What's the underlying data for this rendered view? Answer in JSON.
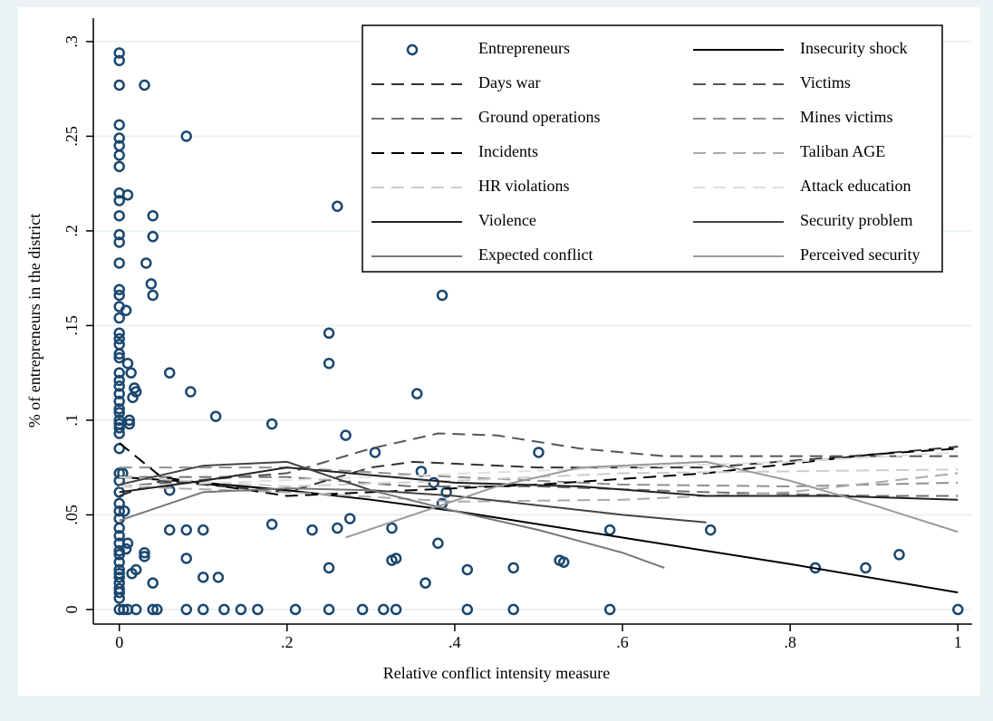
{
  "chart_data": {
    "type": "scatter",
    "xlabel": "Relative conflict intensity measure",
    "ylabel": "% of entrepreneurs in the district",
    "xlim": [
      -0.031,
      1.017
    ],
    "ylim": [
      -0.0077,
      0.3124
    ],
    "xticks": [
      0,
      {
        "value": 0.2,
        "label": ".2"
      },
      {
        "value": 0.4,
        "label": ".4"
      },
      {
        "value": 0.6,
        "label": ".6"
      },
      {
        "value": 0.8,
        "label": ".8"
      },
      1
    ],
    "yticks": [
      0,
      {
        "value": 0.05,
        "label": ".05"
      },
      {
        "value": 0.1,
        "label": ".1"
      },
      {
        "value": 0.15,
        "label": ".15"
      },
      {
        "value": 0.2,
        "label": ".2"
      },
      {
        "value": 0.25,
        "label": ".25"
      },
      {
        "value": 0.3,
        "label": ".3"
      }
    ],
    "grid": true,
    "legend": "top-right",
    "series": [
      {
        "name": "Entrepreneurs",
        "color": "#1a476f",
        "marker": "circle",
        "x": [
          0,
          0,
          0,
          0,
          0,
          0,
          0,
          0,
          0,
          0,
          0,
          0,
          0,
          0,
          0,
          0,
          0,
          0,
          0,
          0,
          0,
          0,
          0,
          0,
          0,
          0,
          0,
          0,
          0,
          0,
          0,
          0,
          0,
          0,
          0,
          0,
          0,
          0,
          0,
          0,
          0,
          0,
          0,
          0,
          0,
          0,
          0,
          0,
          0,
          0,
          0,
          0,
          0,
          0,
          0,
          0.004,
          0.006,
          0.008,
          0.01,
          0.01,
          0.012,
          0.012,
          0.014,
          0.016,
          0.018,
          0.02,
          0.01,
          0.008,
          0.015,
          0.02,
          0.02,
          0.01,
          0.005,
          0.03,
          0.032,
          0.038,
          0.04,
          0.04,
          0.04,
          0.03,
          0.03,
          0.04,
          0.04,
          0.045,
          0.06,
          0.06,
          0.06,
          0.08,
          0.085,
          0.08,
          0.08,
          0.08,
          0.1,
          0.1,
          0.1,
          0.115,
          0.118,
          0.125,
          0.145,
          0.165,
          0.182,
          0.182,
          0.21,
          0.23,
          0.25,
          0.25,
          0.25,
          0.25,
          0.26,
          0.26,
          0.27,
          0.275,
          0.29,
          0.305,
          0.315,
          0.325,
          0.325,
          0.33,
          0.33,
          0.355,
          0.36,
          0.365,
          0.375,
          0.38,
          0.385,
          0.385,
          0.39,
          0.415,
          0.415,
          0.47,
          0.47,
          0.5,
          0.525,
          0.53,
          0.585,
          0.585,
          0.705,
          0.83,
          0.89,
          0.93,
          1
        ],
        "values": [
          0.294,
          0.29,
          0.277,
          0.256,
          0.249,
          0.245,
          0.24,
          0.234,
          0.22,
          0.216,
          0.208,
          0.198,
          0.194,
          0.183,
          0.169,
          0.166,
          0.16,
          0.154,
          0.146,
          0.143,
          0.14,
          0.135,
          0.133,
          0.125,
          0.121,
          0.118,
          0.114,
          0.11,
          0.106,
          0.104,
          0.1,
          0.098,
          0.096,
          0.093,
          0.085,
          0.072,
          0.068,
          0.062,
          0.056,
          0.052,
          0.048,
          0.043,
          0.039,
          0.035,
          0.031,
          0.029,
          0.025,
          0.021,
          0.019,
          0.017,
          0.014,
          0.011,
          0.009,
          0.006,
          0,
          0.072,
          0.052,
          0.158,
          0.219,
          0.13,
          0.1,
          0.098,
          0.125,
          0.112,
          0.117,
          0.115,
          0.035,
          0.032,
          0.019,
          0.021,
          0,
          0,
          0,
          0.277,
          0.183,
          0.172,
          0.166,
          0.208,
          0.197,
          0.03,
          0.028,
          0.014,
          0,
          0,
          0.125,
          0.063,
          0.042,
          0.25,
          0.115,
          0.042,
          0.027,
          0,
          0.042,
          0.017,
          0,
          0.102,
          0.017,
          0,
          0,
          0,
          0.098,
          0.045,
          0,
          0.042,
          0.146,
          0.13,
          0.022,
          0,
          0.213,
          0.043,
          0.092,
          0.048,
          0,
          0.083,
          0,
          0.043,
          0.026,
          0.027,
          0,
          0.114,
          0.073,
          0.014,
          0.067,
          0.035,
          0.166,
          0.056,
          0.062,
          0.021,
          0,
          0.022,
          0,
          0.083,
          0.026,
          0.025,
          0.042,
          0,
          0.042,
          0.022,
          0.022,
          0.029,
          0
        ]
      },
      {
        "name": "Insecurity shock",
        "color": "#000000",
        "line_style": "solid",
        "x": [
          0,
          0.1,
          0.2,
          0.3,
          0.4,
          0.6,
          0.8,
          1
        ],
        "values": [
          0.07,
          0.067,
          0.063,
          0.058,
          0.052,
          0.038,
          0.024,
          0.009
        ]
      },
      {
        "name": "Days war",
        "color": "#333333",
        "line_style": "dash",
        "x": [
          0,
          0.05,
          0.2,
          0.3,
          0.35,
          0.5,
          0.7,
          0.9,
          1
        ],
        "values": [
          0.06,
          0.068,
          0.062,
          0.075,
          0.078,
          0.075,
          0.075,
          0.082,
          0.086
        ]
      },
      {
        "name": "Victims",
        "color": "#555555",
        "line_style": "dash",
        "x": [
          0,
          0.2,
          0.3,
          0.38,
          0.45,
          0.55,
          0.65,
          1
        ],
        "values": [
          0.065,
          0.072,
          0.085,
          0.093,
          0.092,
          0.085,
          0.081,
          0.081
        ]
      },
      {
        "name": "Ground operations",
        "color": "#707070",
        "line_style": "dash",
        "x": [
          0,
          0.2,
          0.35,
          0.5,
          0.7,
          0.9,
          1
        ],
        "values": [
          0.07,
          0.07,
          0.065,
          0.065,
          0.062,
          0.06,
          0.06
        ]
      },
      {
        "name": "Mines victims",
        "color": "#909090",
        "line_style": "dash",
        "x": [
          0,
          0.2,
          0.4,
          0.6,
          0.8,
          1
        ],
        "values": [
          0.075,
          0.075,
          0.07,
          0.066,
          0.065,
          0.067
        ]
      },
      {
        "name": "Incidents",
        "color": "#000000",
        "line_style": "dash",
        "x": [
          0,
          0.05,
          0.2,
          0.3,
          0.5,
          0.7,
          0.9,
          1
        ],
        "values": [
          0.088,
          0.07,
          0.06,
          0.062,
          0.066,
          0.072,
          0.082,
          0.085
        ]
      },
      {
        "name": "Taliban AGE",
        "color": "#aaaaaa",
        "line_style": "dash",
        "x": [
          0,
          0.2,
          0.4,
          0.6,
          0.8,
          1
        ],
        "values": [
          0.065,
          0.062,
          0.057,
          0.058,
          0.062,
          0.072
        ]
      },
      {
        "name": "HR violations",
        "color": "#cccccc",
        "line_style": "dash",
        "x": [
          0,
          0.2,
          0.4,
          0.6,
          0.8,
          1
        ],
        "values": [
          0.07,
          0.065,
          0.068,
          0.072,
          0.073,
          0.074
        ]
      },
      {
        "name": "Attack education",
        "color": "#e0e0e0",
        "line_style": "dash",
        "x": [
          0,
          0.3,
          0.6,
          0.8,
          1
        ],
        "values": [
          0.065,
          0.07,
          0.075,
          0.078,
          0.083
        ]
      },
      {
        "name": "Violence",
        "color": "#222222",
        "line_style": "solid",
        "x": [
          0,
          0.1,
          0.2,
          0.4,
          0.55,
          0.7,
          0.85,
          1
        ],
        "values": [
          0.062,
          0.068,
          0.075,
          0.067,
          0.065,
          0.06,
          0.06,
          0.058
        ]
      },
      {
        "name": "Security problem",
        "color": "#444444",
        "line_style": "solid",
        "x": [
          0,
          0.1,
          0.2,
          0.3,
          0.4,
          0.5,
          0.6,
          0.7
        ],
        "values": [
          0.066,
          0.076,
          0.078,
          0.063,
          0.06,
          0.055,
          0.05,
          0.046
        ]
      },
      {
        "name": "Expected conflict",
        "color": "#777777",
        "line_style": "solid",
        "x": [
          0,
          0.1,
          0.2,
          0.3,
          0.4,
          0.5,
          0.6,
          0.65
        ],
        "values": [
          0.047,
          0.062,
          0.064,
          0.063,
          0.052,
          0.042,
          0.03,
          0.022
        ]
      },
      {
        "name": "Perceived security",
        "color": "#999999",
        "line_style": "solid",
        "x": [
          0.27,
          0.35,
          0.45,
          0.55,
          0.7,
          0.8,
          0.9,
          1
        ],
        "values": [
          0.038,
          0.05,
          0.065,
          0.075,
          0.078,
          0.068,
          0.055,
          0.041
        ]
      }
    ]
  }
}
